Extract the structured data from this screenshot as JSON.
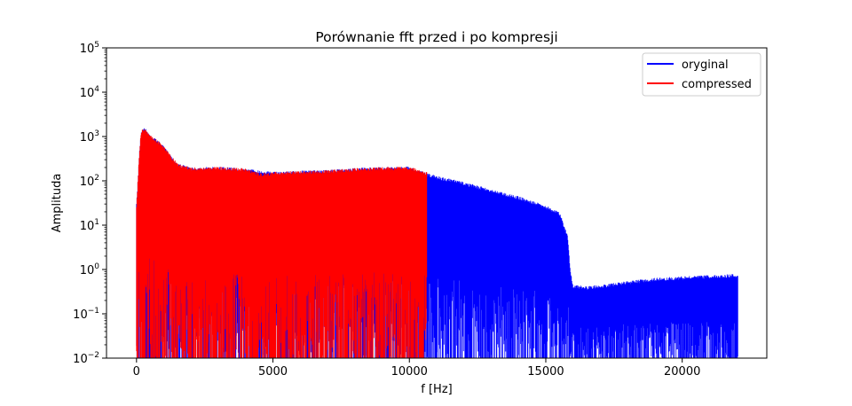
{
  "chart_data": {
    "type": "line",
    "title": "Porównanie fft przed i po kompresji",
    "xlabel": "f [Hz]",
    "ylabel": "Amplituda",
    "xlim": [
      -1100,
      23100
    ],
    "ylim": [
      0.01,
      100000
    ],
    "yscale": "log",
    "grid": false,
    "legend_position": "top-right",
    "x_ticks": [
      {
        "value": 0,
        "label": "0"
      },
      {
        "value": 5000,
        "label": "5000"
      },
      {
        "value": 10000,
        "label": "10000"
      },
      {
        "value": 15000,
        "label": "15000"
      },
      {
        "value": 20000,
        "label": "20000"
      }
    ],
    "y_ticks": [
      {
        "value": 0.01,
        "base": "10",
        "exp": "−2"
      },
      {
        "value": 0.1,
        "base": "10",
        "exp": "−1"
      },
      {
        "value": 1,
        "base": "10",
        "exp": "0"
      },
      {
        "value": 10,
        "base": "10",
        "exp": "1"
      },
      {
        "value": 100,
        "base": "10",
        "exp": "2"
      },
      {
        "value": 1000,
        "base": "10",
        "exp": "3"
      },
      {
        "value": 10000,
        "base": "10",
        "exp": "4"
      },
      {
        "value": 100000,
        "base": "10",
        "exp": "5"
      }
    ],
    "series": [
      {
        "name": "oryginal",
        "color": "#0000ff",
        "x_range": [
          0,
          22050
        ],
        "envelope": {
          "x": [
            0,
            50,
            100,
            150,
            200,
            300,
            500,
            800,
            1000,
            1500,
            2000,
            3000,
            4000,
            5000,
            6000,
            7000,
            8000,
            9000,
            10000,
            10500,
            11000,
            12000,
            13000,
            14000,
            15000,
            15500,
            15800,
            15900,
            16000,
            16500,
            17000,
            18000,
            19000,
            20000,
            21000,
            22050
          ],
          "y": [
            30,
            100,
            400,
            1000,
            1500,
            1600,
            1100,
            800,
            600,
            250,
            200,
            210,
            190,
            160,
            170,
            175,
            195,
            205,
            210,
            160,
            130,
            95,
            65,
            45,
            28,
            20,
            6,
            1,
            0.45,
            0.42,
            0.45,
            0.55,
            0.65,
            0.7,
            0.75,
            0.8
          ]
        },
        "dropouts": [
          15000
        ]
      },
      {
        "name": "compressed",
        "color": "#ff0000",
        "x_range": [
          0,
          10650
        ],
        "envelope": {
          "x": [
            0,
            50,
            100,
            150,
            200,
            300,
            500,
            800,
            1000,
            1500,
            2000,
            3000,
            4000,
            4500,
            5000,
            6000,
            7000,
            8000,
            9000,
            10000,
            10650
          ],
          "y": [
            30,
            100,
            400,
            1000,
            1500,
            1600,
            1100,
            800,
            600,
            250,
            200,
            210,
            190,
            150,
            160,
            170,
            175,
            195,
            205,
            210,
            160
          ]
        },
        "gaps": [
          [
            4300,
            4450
          ],
          [
            4900,
            5050
          ],
          [
            5350,
            5450
          ],
          [
            5600,
            5700
          ],
          [
            10050,
            10150
          ],
          [
            10350,
            10500
          ]
        ]
      }
    ]
  }
}
